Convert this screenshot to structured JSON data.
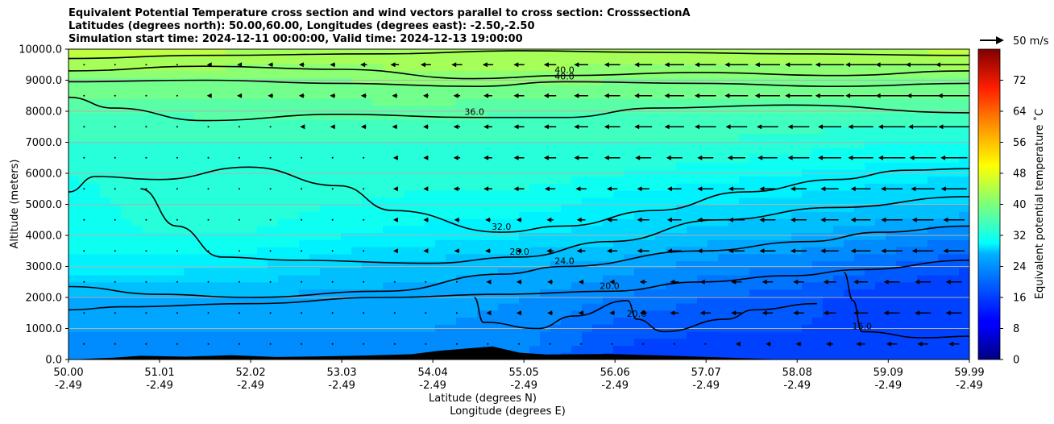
{
  "title_lines": [
    "Equivalent Potential Temperature cross section and wind vectors parallel to cross section: CrosssectionA",
    "Latitudes (degrees north): 50.00,60.00, Longitudes (degrees east): -2.50,-2.50",
    "Simulation start time: 2024-12-11 00:00:00, Valid time: 2024-12-13 19:00:00"
  ],
  "quiver_key_label": "50 m/s",
  "chart_data": {
    "type": "heatmap",
    "x_labels_lat": [
      "50.00",
      "51.01",
      "52.02",
      "53.03",
      "54.04",
      "55.05",
      "56.06",
      "57.07",
      "58.08",
      "59.09",
      "59.99"
    ],
    "x_labels_lon": [
      "-2.49",
      "-2.49",
      "-2.49",
      "-2.49",
      "-2.49",
      "-2.49",
      "-2.49",
      "-2.49",
      "-2.49",
      "-2.49",
      "-2.49"
    ],
    "x_values": [
      50.0,
      51.01,
      52.02,
      53.03,
      54.04,
      55.05,
      56.06,
      57.07,
      58.08,
      59.09,
      59.99
    ],
    "xlim": [
      50.0,
      59.99
    ],
    "xlabel_line1": "Latitude (degrees N)",
    "xlabel_line2": "Longitude (degrees E)",
    "y_ticks": [
      0,
      1000,
      2000,
      3000,
      4000,
      5000,
      6000,
      7000,
      8000,
      9000,
      10000
    ],
    "y_tick_labels": [
      "0.0",
      "1000.0",
      "2000.0",
      "3000.0",
      "4000.0",
      "5000.0",
      "6000.0",
      "7000.0",
      "8000.0",
      "9000.0",
      "10000.0"
    ],
    "ylim": [
      0,
      10000
    ],
    "ylabel": "Altitude (meters)",
    "grid": "horizontal",
    "colorbar": {
      "label": "Equivalent potential temperature ˚C",
      "range": [
        0,
        80
      ],
      "ticks": [
        0,
        8,
        16,
        24,
        32,
        40,
        48,
        56,
        64,
        72
      ],
      "tick_labels": [
        "0",
        "8",
        "16",
        "24",
        "32",
        "40",
        "48",
        "56",
        "64",
        "72"
      ],
      "colormap": "jet"
    },
    "field_rows": [
      {
        "y": 0,
        "values": [
          21,
          21,
          21,
          21,
          21,
          20,
          15,
          15,
          15,
          14,
          14
        ]
      },
      {
        "y": 1000,
        "values": [
          22,
          22,
          22,
          22,
          22,
          21,
          17,
          16,
          16,
          15,
          15
        ]
      },
      {
        "y": 2000,
        "values": [
          24,
          24,
          24,
          23,
          23,
          22,
          20,
          18,
          17,
          14,
          14
        ]
      },
      {
        "y": 3000,
        "values": [
          29,
          29,
          28,
          26,
          25,
          24,
          23,
          21,
          20,
          18,
          16
        ]
      },
      {
        "y": 4000,
        "values": [
          31,
          32,
          32,
          30,
          29,
          28,
          27,
          25,
          24,
          22,
          20
        ]
      },
      {
        "y": 5000,
        "values": [
          31,
          33,
          33,
          32,
          31,
          31,
          29,
          28,
          27,
          26,
          26
        ]
      },
      {
        "y": 6000,
        "values": [
          32,
          33,
          33,
          34,
          33,
          33,
          32,
          31,
          30,
          29,
          28
        ]
      },
      {
        "y": 7000,
        "values": [
          34,
          34,
          34,
          34,
          34,
          34,
          34,
          34,
          33,
          32,
          32
        ]
      },
      {
        "y": 8000,
        "values": [
          36,
          36,
          37,
          37,
          37,
          36,
          36,
          36,
          36,
          36,
          36
        ]
      },
      {
        "y": 9000,
        "values": [
          40,
          40,
          40,
          40,
          41,
          41,
          40,
          40,
          40,
          40,
          40
        ]
      },
      {
        "y": 10000,
        "values": [
          46,
          46,
          44,
          44,
          44,
          44,
          44,
          44,
          44,
          44,
          45
        ]
      }
    ],
    "contours": [
      {
        "level": "44.0",
        "points": [
          [
            50.0,
            9700
          ],
          [
            51.5,
            9800
          ],
          [
            53.5,
            9850
          ],
          [
            55.0,
            9950
          ],
          [
            56.5,
            9900
          ],
          [
            58.0,
            9850
          ],
          [
            59.99,
            9800
          ]
        ]
      },
      {
        "level": "40.0",
        "points": [
          [
            50.0,
            9300
          ],
          [
            51.5,
            9450
          ],
          [
            53.0,
            9350
          ],
          [
            54.5,
            9050
          ],
          [
            55.5,
            9150
          ],
          [
            57.0,
            9250
          ],
          [
            58.5,
            9150
          ],
          [
            59.99,
            9300
          ]
        ]
      },
      {
        "level": "40.0",
        "points": [
          [
            50.0,
            8950
          ],
          [
            51.5,
            9000
          ],
          [
            53.0,
            8900
          ],
          [
            54.5,
            8800
          ],
          [
            55.5,
            8950
          ],
          [
            57.0,
            8900
          ],
          [
            58.5,
            8800
          ],
          [
            59.99,
            8900
          ]
        ]
      },
      {
        "level": "36.0",
        "points": [
          [
            50.0,
            8450
          ],
          [
            50.5,
            8100
          ],
          [
            51.5,
            7700
          ],
          [
            53.0,
            7900
          ],
          [
            54.5,
            7800
          ],
          [
            55.5,
            7800
          ],
          [
            56.5,
            8100
          ],
          [
            58.0,
            8200
          ],
          [
            59.99,
            7950
          ]
        ]
      },
      {
        "level": "32.0",
        "points": [
          [
            50.0,
            5400
          ],
          [
            50.3,
            5900
          ],
          [
            51.0,
            5800
          ],
          [
            52.0,
            6200
          ],
          [
            53.0,
            5600
          ],
          [
            53.6,
            4800
          ],
          [
            54.8,
            4100
          ],
          [
            55.5,
            4300
          ],
          [
            56.5,
            4800
          ],
          [
            57.5,
            5400
          ],
          [
            58.5,
            5800
          ],
          [
            59.3,
            6100
          ],
          [
            59.99,
            6150
          ]
        ]
      },
      {
        "level": "28.0",
        "points": [
          [
            50.8,
            5500
          ],
          [
            51.2,
            4300
          ],
          [
            51.7,
            3300
          ],
          [
            52.5,
            3200
          ],
          [
            54.0,
            3100
          ],
          [
            55.0,
            3300
          ],
          [
            56.0,
            3800
          ],
          [
            57.2,
            4500
          ],
          [
            58.5,
            4900
          ],
          [
            59.99,
            5250
          ]
        ]
      },
      {
        "level": "24.0",
        "points": [
          [
            50.0,
            2350
          ],
          [
            51.0,
            2100
          ],
          [
            52.0,
            2000
          ],
          [
            53.5,
            2200
          ],
          [
            54.8,
            2750
          ],
          [
            55.5,
            3000
          ],
          [
            57.0,
            3500
          ],
          [
            58.2,
            3800
          ],
          [
            59.0,
            4100
          ],
          [
            59.99,
            4300
          ]
        ]
      },
      {
        "level": "20.0",
        "points": [
          [
            50.0,
            1600
          ],
          [
            50.6,
            1700
          ],
          [
            52.0,
            1800
          ],
          [
            53.5,
            2000
          ],
          [
            54.8,
            2100
          ],
          [
            56.0,
            2200
          ],
          [
            57.0,
            2500
          ],
          [
            58.0,
            2700
          ],
          [
            58.8,
            2900
          ],
          [
            59.99,
            3200
          ]
        ]
      },
      {
        "level": "20.0",
        "points": [
          [
            54.5,
            2000
          ],
          [
            54.6,
            1200
          ],
          [
            55.2,
            1000
          ],
          [
            55.6,
            1400
          ],
          [
            56.2,
            1900
          ],
          [
            56.3,
            1300
          ],
          [
            56.6,
            900
          ],
          [
            57.3,
            1300
          ],
          [
            57.6,
            1600
          ],
          [
            58.3,
            1800
          ]
        ]
      },
      {
        "level": "16.0",
        "points": [
          [
            58.6,
            2800
          ],
          [
            58.7,
            1900
          ],
          [
            58.8,
            900
          ],
          [
            59.5,
            700
          ],
          [
            59.99,
            750
          ]
        ]
      }
    ],
    "terrain": {
      "x": [
        50.0,
        50.5,
        50.8,
        51.3,
        51.8,
        52.3,
        52.8,
        53.3,
        53.8,
        54.1,
        54.4,
        54.7,
        55.0,
        55.3,
        56.0,
        56.6,
        57.2,
        57.6,
        58.0,
        59.99
      ],
      "height": [
        0,
        60,
        120,
        90,
        140,
        80,
        100,
        130,
        170,
        280,
        350,
        420,
        220,
        160,
        180,
        130,
        70,
        30,
        0,
        0
      ]
    },
    "wind": {
      "note": "vectors parallel to cross section; negative = pointing toward lower latitude",
      "y_levels": [
        500,
        1500,
        2500,
        3500,
        4500,
        5500,
        6500,
        7500,
        8500,
        9500
      ],
      "columns_lat": [
        50.0,
        51.01,
        52.02,
        53.03,
        54.04,
        55.05,
        56.06,
        57.07,
        58.08,
        59.09,
        59.99
      ],
      "u": [
        [
          0,
          0,
          0,
          0,
          0,
          0,
          0,
          0,
          -1,
          -2,
          -2
        ],
        [
          0,
          0,
          0,
          0,
          0,
          -1,
          -1,
          -2,
          -2,
          -3,
          -3
        ],
        [
          0,
          0,
          0,
          0,
          0,
          -1,
          -1,
          -2,
          -2,
          -3,
          -3
        ],
        [
          0,
          0,
          0,
          0,
          -1,
          -1,
          -2,
          -3,
          -3,
          -4,
          -4
        ],
        [
          0,
          0,
          0,
          0,
          -1,
          -1,
          -2,
          -3,
          -3,
          -4,
          -4
        ],
        [
          0,
          0,
          0,
          0,
          -1,
          -2,
          -2,
          -3,
          -3,
          -4,
          -5
        ],
        [
          0,
          0,
          0,
          0,
          -1,
          -2,
          -3,
          -3,
          -4,
          -5,
          -5
        ],
        [
          0,
          0,
          0,
          -1,
          -1,
          -2,
          -3,
          -4,
          -4,
          -5,
          -6
        ],
        [
          0,
          0,
          -1,
          -1,
          -1,
          -2,
          -3,
          -4,
          -5,
          -6,
          -6
        ],
        [
          0,
          0,
          -1,
          -1,
          -2,
          -2,
          -3,
          -4,
          -5,
          -6,
          -7
        ]
      ]
    }
  }
}
